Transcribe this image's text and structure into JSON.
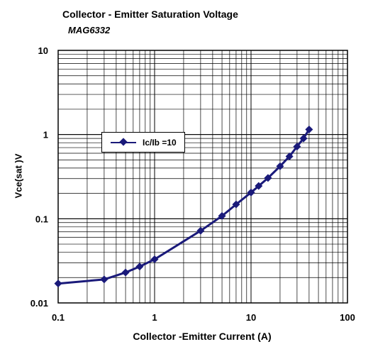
{
  "colors": {
    "series": "#1a1a7a",
    "grid": "#000000",
    "background": "#ffffff"
  },
  "chart_data": {
    "type": "line",
    "title": "Collector - Emitter Saturation Voltage",
    "subtitle": "MAG6332",
    "xlabel": "Collector -Emitter Current (A)",
    "ylabel": "Vce(sat )V",
    "x_scale": "log",
    "y_scale": "log",
    "xlim": [
      0.1,
      100
    ],
    "ylim": [
      0.01,
      10
    ],
    "x_ticks": [
      "0.1",
      "1",
      "10",
      "100"
    ],
    "y_ticks": [
      "0.01",
      "0.1",
      "1",
      "10"
    ],
    "grid": true,
    "legend_position": "upper-left",
    "series": [
      {
        "name": "Ic/Ib =10",
        "x": [
          0.1,
          0.3,
          0.5,
          0.7,
          1,
          3,
          5,
          7,
          10,
          12,
          15,
          20,
          25,
          30,
          35,
          40
        ],
        "y": [
          0.017,
          0.019,
          0.023,
          0.027,
          0.033,
          0.072,
          0.108,
          0.148,
          0.205,
          0.245,
          0.305,
          0.42,
          0.55,
          0.72,
          0.9,
          1.15
        ]
      }
    ]
  }
}
